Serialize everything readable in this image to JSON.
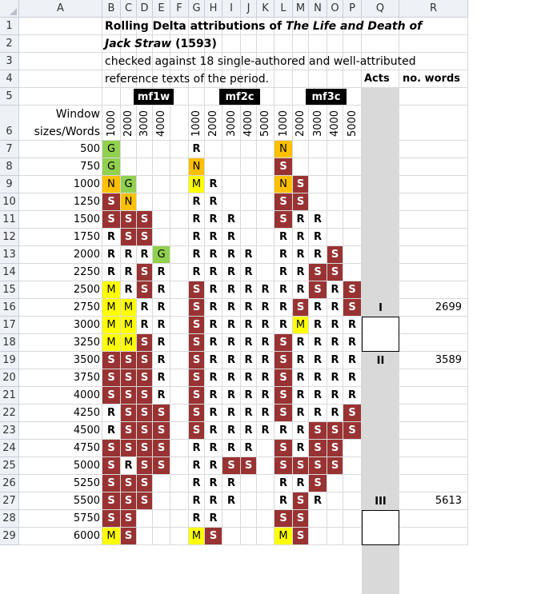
{
  "columns": [
    "A",
    "B",
    "C",
    "D",
    "E",
    "F",
    "G",
    "H",
    "I",
    "J",
    "K",
    "L",
    "M",
    "N",
    "O",
    "P",
    "Q",
    "R"
  ],
  "title_line1_prefix": "Rolling Delta attributions of ",
  "title_line1_italic": "The Life and Death of",
  "title_line2_italic": "Jack Straw",
  "title_line2_suffix": "  (1593)",
  "subtitle_line1": "checked against 18 single-authored and well-attributed",
  "subtitle_line2": "reference texts of the period.",
  "acts_header": "Acts",
  "words_header": "no. words",
  "mf_headers": [
    "mf1w",
    "mf2c",
    "mf3c"
  ],
  "window_label_1": "Window",
  "window_label_2": "sizes/Words",
  "word_counts": [
    "1000",
    "2000",
    "3000",
    "4000",
    "1000",
    "2000",
    "3000",
    "4000",
    "5000",
    "1000",
    "2000",
    "3000",
    "4000",
    "5000"
  ],
  "acts": [
    {
      "label": "I",
      "words": "2699"
    },
    {
      "label": "II",
      "words": "3589"
    },
    {
      "label": "III",
      "words": "5613"
    }
  ],
  "rows": [
    {
      "size": "500",
      "m1": "G",
      "m2": "R",
      "m3": "N"
    },
    {
      "size": "750",
      "m1": "G",
      "m2": "N",
      "m3": "S"
    },
    {
      "size": "1000",
      "m1": "NG",
      "m2": "MR",
      "m3": "NS"
    },
    {
      "size": "1250",
      "m1": "SN",
      "m2": "RR",
      "m3": "SS"
    },
    {
      "size": "1500",
      "m1": "SSS",
      "m2": "RRR",
      "m3": "SRR"
    },
    {
      "size": "1750",
      "m1": "RSS",
      "m2": "RRR",
      "m3": "RRR"
    },
    {
      "size": "2000",
      "m1": "RRRG",
      "m2": "RRRR",
      "m3": "RRRS"
    },
    {
      "size": "2250",
      "m1": "RRSR",
      "m2": "RRRR",
      "m3": "RRSS"
    },
    {
      "size": "2500",
      "m1": "MRSR",
      "m2": "SRRRR",
      "m3": "RRSRS"
    },
    {
      "size": "2750",
      "m1": "MMRR",
      "m2": "SRRRR",
      "m3": "RSRRS"
    },
    {
      "size": "3000",
      "m1": "MMRR",
      "m2": "SRRRR",
      "m3": "RMRRR"
    },
    {
      "size": "3250",
      "m1": "MMSR",
      "m2": "SRRRR",
      "m3": "SRRRR"
    },
    {
      "size": "3500",
      "m1": "SSSR",
      "m2": "SRRRR",
      "m3": "SRRRR"
    },
    {
      "size": "3750",
      "m1": "SSSR",
      "m2": "SRRRR",
      "m3": "SRRRR"
    },
    {
      "size": "4000",
      "m1": "SSSR",
      "m2": "SRRRR",
      "m3": "SRRRR"
    },
    {
      "size": "4250",
      "m1": "RSSS",
      "m2": "SRRRR",
      "m3": "SRRRS"
    },
    {
      "size": "4500",
      "m1": "RSSS",
      "m2": "SRRRR",
      "m3": "RRSSS"
    },
    {
      "size": "4750",
      "m1": "SSSS",
      "m2": "RRRR",
      "m3": "SRSS"
    },
    {
      "size": "5000",
      "m1": "SRSS",
      "m2": "RRSS",
      "m3": "SSSS"
    },
    {
      "size": "5250",
      "m1": "SSS",
      "m2": "RRR",
      "m3": "RRS"
    },
    {
      "size": "5500",
      "m1": "SSS",
      "m2": "RRR",
      "m3": "RSR"
    },
    {
      "size": "5750",
      "m1": "SS",
      "m2": "RR",
      "m3": "SS"
    },
    {
      "size": "6000",
      "m1": "MS",
      "m2": "MS",
      "m3": "MS"
    }
  ]
}
